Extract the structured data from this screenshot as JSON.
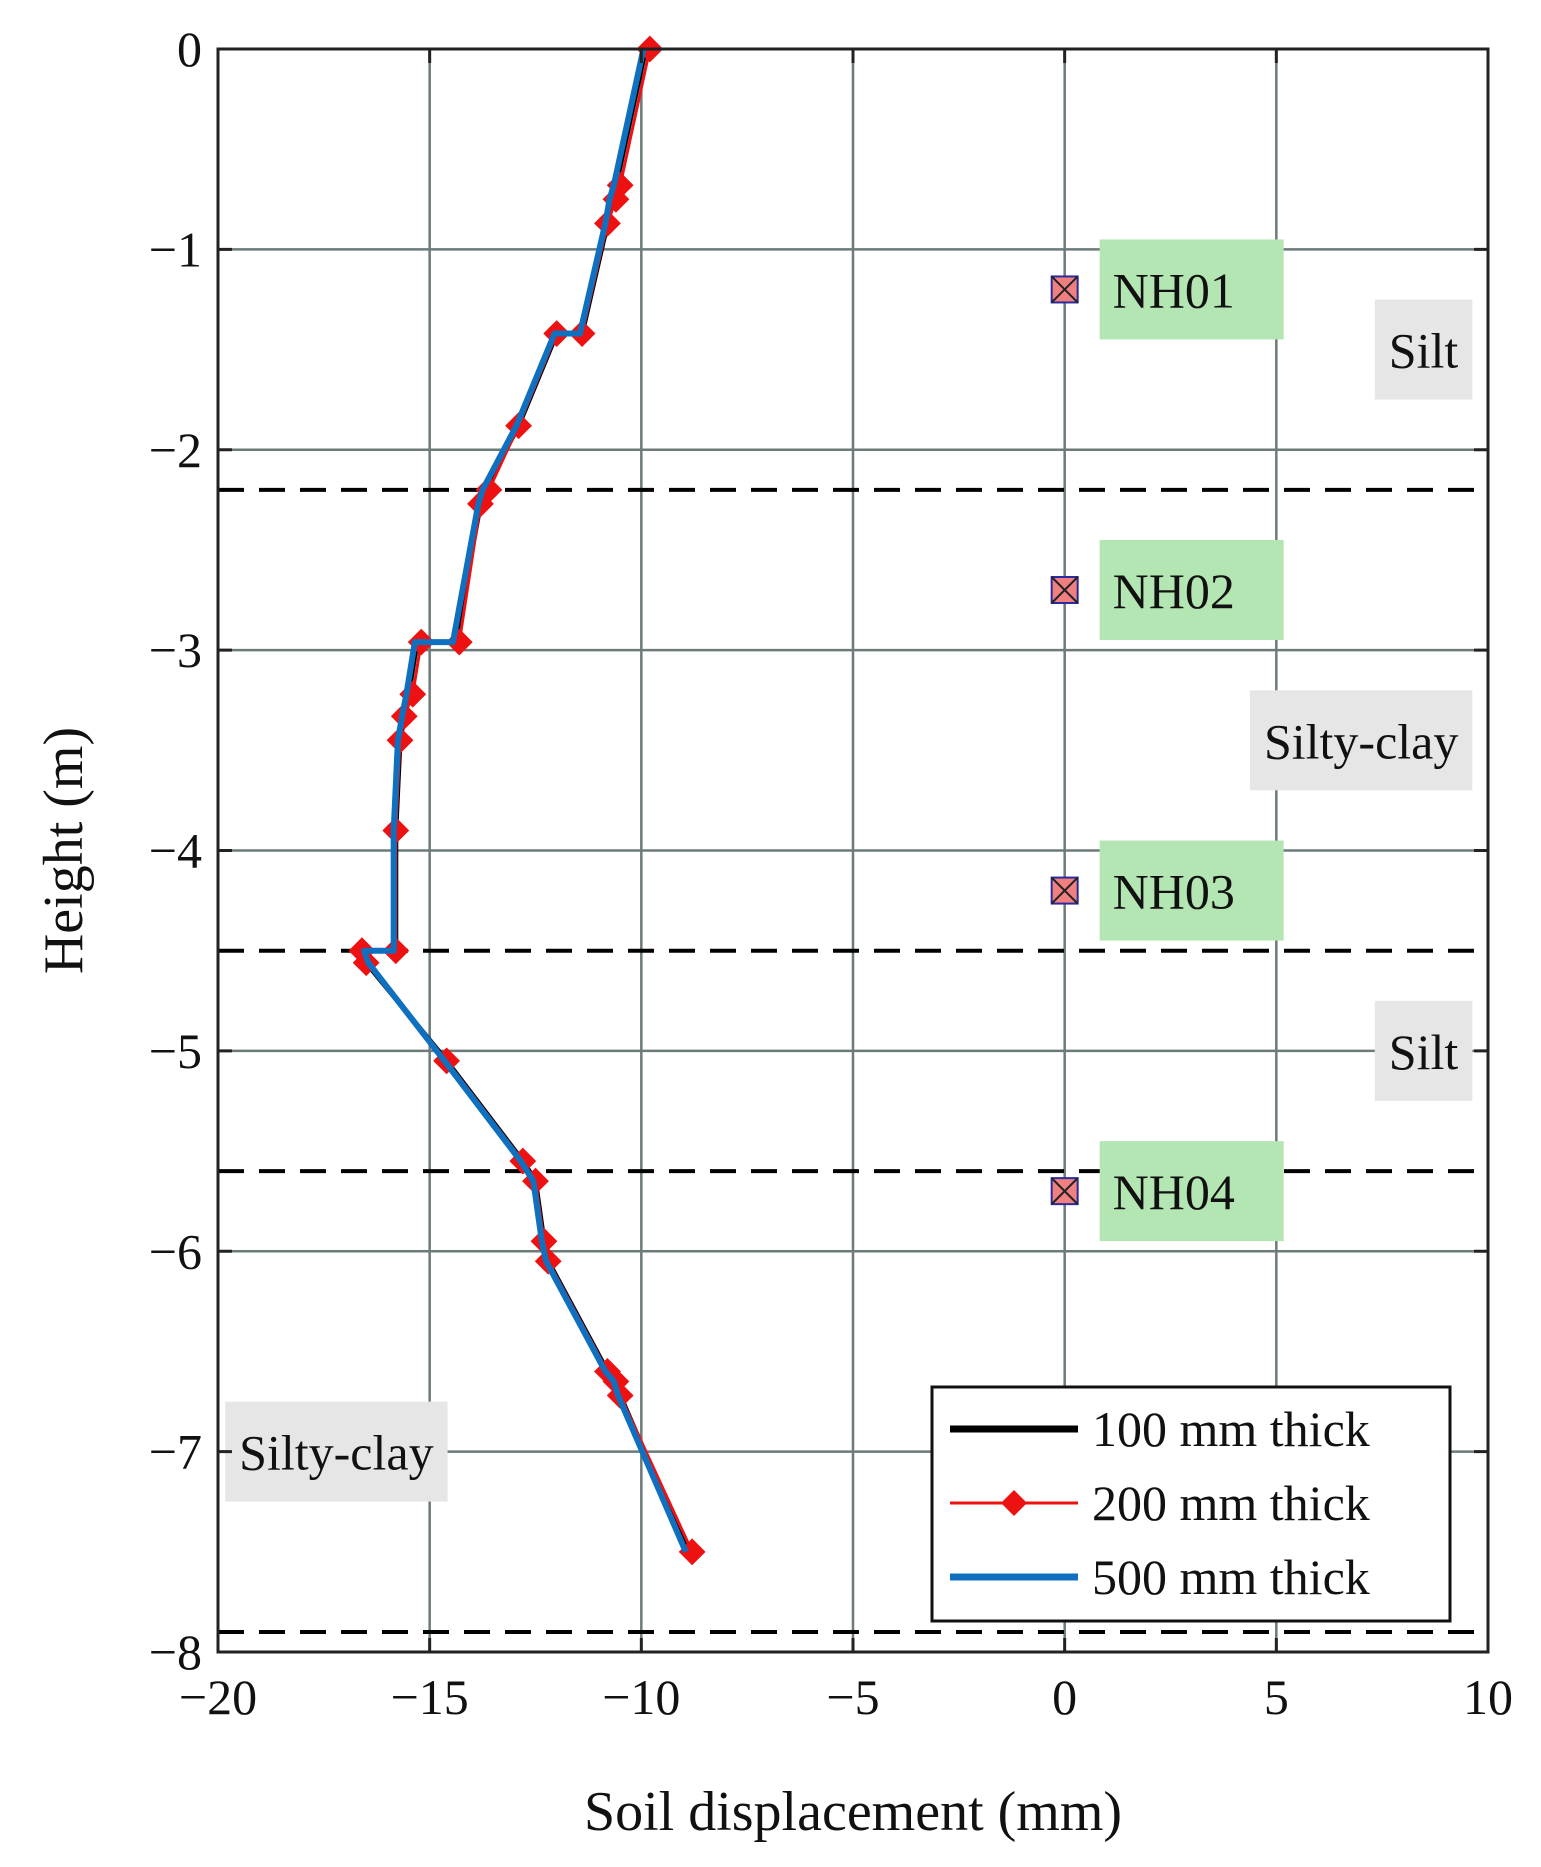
{
  "chart_data": {
    "type": "line",
    "title": "",
    "xlabel": "Soil displacement (mm)",
    "ylabel": "Height (m)",
    "xlim": [
      -20,
      10
    ],
    "ylim": [
      -8,
      0
    ],
    "x_ticks": [
      -20,
      -15,
      -10,
      -5,
      0,
      5,
      10
    ],
    "x_tick_labels": [
      "−20",
      "−15",
      "−10",
      "−5",
      "0",
      "5",
      "10"
    ],
    "y_ticks": [
      0,
      -1,
      -2,
      -3,
      -4,
      -5,
      -6,
      -7,
      -8
    ],
    "y_tick_labels": [
      "0",
      "−1",
      "−2",
      "−3",
      "−4",
      "−5",
      "−6",
      "−7",
      "−8"
    ],
    "grid": true,
    "legend_position": "bottom-right",
    "series": [
      {
        "name": "100 mm thick",
        "color": "#000000",
        "marker": "none",
        "x": [
          -9.9,
          -10.6,
          -10.7,
          -10.8,
          -11.4,
          -12.0,
          -12.9,
          -13.7,
          -13.8,
          -14.4,
          -15.3,
          -15.5,
          -15.6,
          -15.7,
          -15.8,
          -15.8,
          -15.9,
          -16.6,
          -16.5,
          -14.6,
          -12.8,
          -12.5,
          -12.3,
          -12.2,
          -10.8,
          -10.6,
          -10.5,
          -8.9
        ],
        "y": [
          0,
          -0.68,
          -0.75,
          -0.87,
          -1.42,
          -1.42,
          -1.88,
          -2.2,
          -2.27,
          -2.96,
          -2.96,
          -3.22,
          -3.33,
          -3.45,
          -3.9,
          -4.5,
          -4.5,
          -4.5,
          -4.56,
          -5.05,
          -5.55,
          -5.65,
          -5.95,
          -6.05,
          -6.6,
          -6.65,
          -6.72,
          -7.5
        ]
      },
      {
        "name": "200 mm thick",
        "color": "#ee1111",
        "marker": "diamond",
        "x": [
          -9.8,
          -10.5,
          -10.6,
          -10.8,
          -11.4,
          -12.0,
          -12.9,
          -13.6,
          -13.8,
          -14.3,
          -15.2,
          -15.4,
          -15.6,
          -15.7,
          -15.8,
          -15.8,
          -16.6,
          -16.5,
          -14.6,
          -12.8,
          -12.5,
          -12.3,
          -12.2,
          -10.8,
          -10.6,
          -10.5,
          -8.8
        ],
        "y": [
          0,
          -0.68,
          -0.75,
          -0.87,
          -1.42,
          -1.42,
          -1.88,
          -2.2,
          -2.27,
          -2.96,
          -2.96,
          -3.22,
          -3.33,
          -3.45,
          -3.9,
          -4.5,
          -4.5,
          -4.56,
          -5.05,
          -5.55,
          -5.65,
          -5.95,
          -6.05,
          -6.6,
          -6.65,
          -6.72,
          -7.5
        ]
      },
      {
        "name": "500 mm thick",
        "color": "#1070c0",
        "marker": "none",
        "x": [
          -9.95,
          -10.65,
          -10.75,
          -10.85,
          -11.45,
          -12.05,
          -12.95,
          -13.75,
          -13.85,
          -14.45,
          -15.35,
          -15.55,
          -15.65,
          -15.75,
          -15.85,
          -15.85,
          -16.55,
          -16.45,
          -14.65,
          -12.85,
          -12.55,
          -12.35,
          -12.25,
          -10.85,
          -10.65,
          -10.55,
          -8.95
        ],
        "y": [
          0,
          -0.68,
          -0.75,
          -0.87,
          -1.42,
          -1.42,
          -1.88,
          -2.2,
          -2.27,
          -2.96,
          -2.96,
          -3.22,
          -3.33,
          -3.45,
          -3.9,
          -4.5,
          -4.5,
          -4.56,
          -5.05,
          -5.55,
          -5.65,
          -5.95,
          -6.05,
          -6.6,
          -6.65,
          -6.72,
          -7.5
        ]
      }
    ],
    "layer_boundaries": [
      -2.2,
      -4.5,
      -5.6,
      -7.9
    ],
    "sensors": [
      {
        "label": "NH01",
        "x": 0,
        "y": -1.2
      },
      {
        "label": "NH02",
        "x": 0,
        "y": -2.7
      },
      {
        "label": "NH03",
        "x": 0,
        "y": -4.2
      },
      {
        "label": "NH04",
        "x": 0,
        "y": -5.7
      }
    ],
    "sensor_style": {
      "fill": "#f08080",
      "edge": "#2a2aa0",
      "box_fill": "#b3e6b3"
    },
    "layers": [
      {
        "label": "Silt",
        "x_right": 9.3,
        "y_center": -1.5
      },
      {
        "label": "Silty-clay",
        "x_right": 9.3,
        "y_center": -3.45
      },
      {
        "label": "Silt",
        "x_right": 9.3,
        "y_center": -5.0
      },
      {
        "label": "Silty-clay",
        "x_left": -19.5,
        "y_center": -7.0
      }
    ],
    "layer_box_fill": "#e6e6e6",
    "grid_color": "#6c7a7a"
  }
}
